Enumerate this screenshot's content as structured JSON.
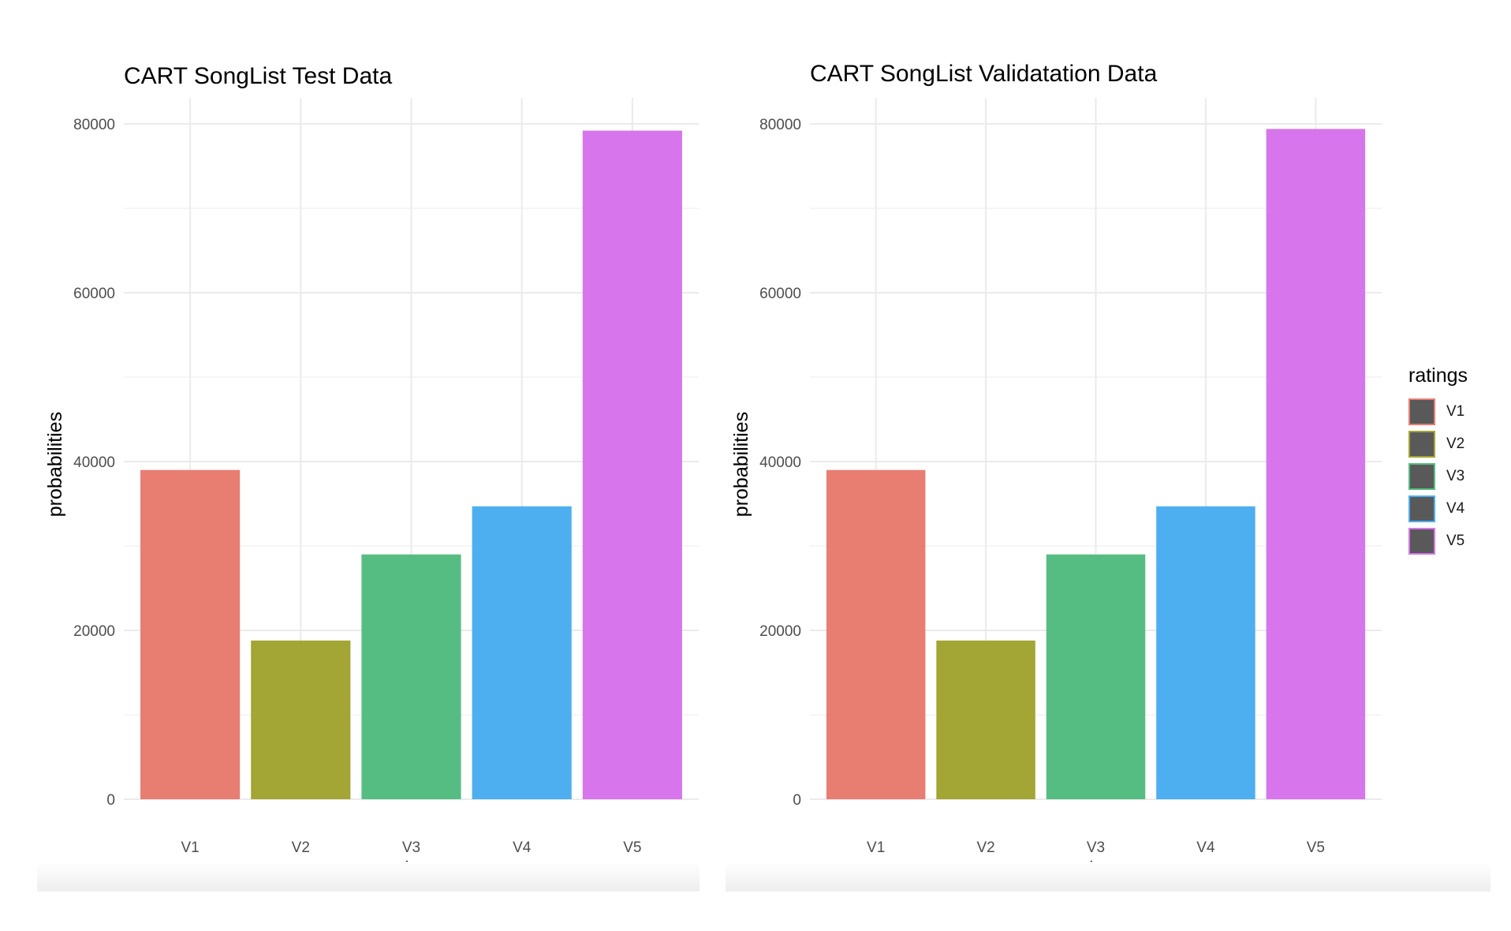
{
  "chart_data": [
    {
      "type": "bar",
      "title": "CART SongList Test Data",
      "xlabel": "ratings",
      "ylabel": "probabilities",
      "categories": [
        "V1",
        "V2",
        "V3",
        "V4",
        "V5"
      ],
      "values": [
        39000,
        18800,
        29000,
        34700,
        79200
      ],
      "ylim": [
        0,
        80000
      ],
      "yticks": [
        "0",
        "20000",
        "40000",
        "60000",
        "80000"
      ],
      "grid": true
    },
    {
      "type": "bar",
      "title": "CART SongList Validatation Data",
      "xlabel": "ratings",
      "ylabel": "probabilities",
      "categories": [
        "V1",
        "V2",
        "V3",
        "V4",
        "V5"
      ],
      "values": [
        39000,
        18800,
        29000,
        34700,
        79400
      ],
      "ylim": [
        0,
        80000
      ],
      "yticks": [
        "0",
        "20000",
        "40000",
        "60000",
        "80000"
      ],
      "grid": true
    }
  ],
  "colors": [
    "#E87D72",
    "#A3A535",
    "#56BD82",
    "#4DAFF0",
    "#D776EC"
  ],
  "legend": {
    "title": "ratings",
    "placement": "right",
    "items": [
      "V1",
      "V2",
      "V3",
      "V4",
      "V5"
    ]
  }
}
